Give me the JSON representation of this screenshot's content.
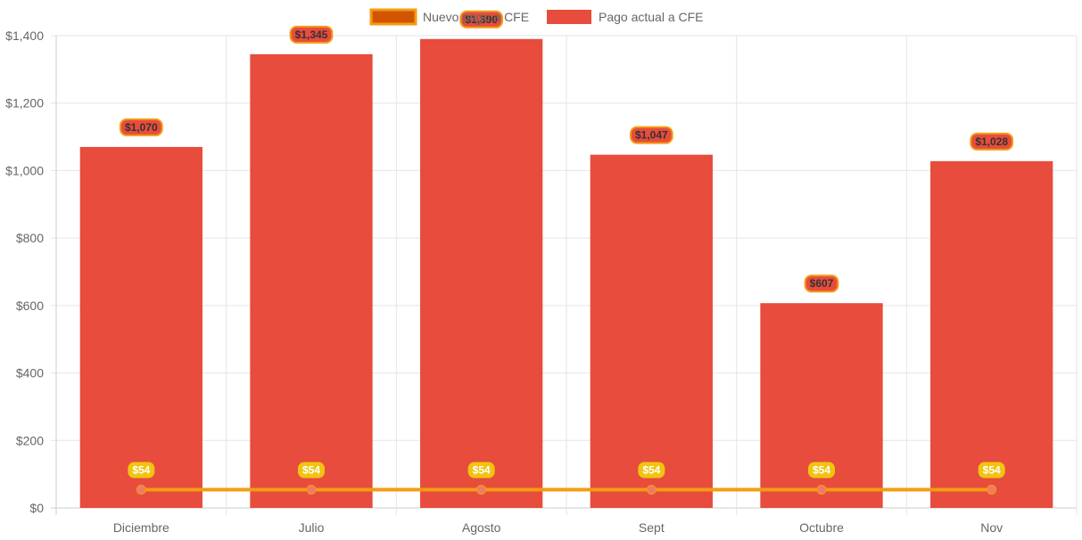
{
  "chart_data": {
    "type": "bar",
    "categories": [
      "Diciembre",
      "Julio",
      "Agosto",
      "Sept",
      "Octubre",
      "Nov"
    ],
    "series": [
      {
        "name": "Nuevo pago a CFE",
        "type": "line",
        "values": [
          54,
          54,
          54,
          54,
          54,
          54
        ],
        "labels": [
          "$54",
          "$54",
          "$54",
          "$54",
          "$54",
          "$54"
        ],
        "color": "#f39c12",
        "point_color": "#f07a6a",
        "label_bg": "#f1c40f",
        "legend_fill": "#d35400",
        "legend_border": "#f39c12"
      },
      {
        "name": "Pago actual a CFE",
        "type": "bar",
        "values": [
          1070,
          1345,
          1390,
          1047,
          607,
          1028
        ],
        "labels": [
          "$1,070",
          "$1,345",
          "$1,390",
          "$1,047",
          "$607",
          "$1,028"
        ],
        "color": "#e74c3c",
        "label_bg": "#e74c3c",
        "label_border": "#f39c12"
      }
    ],
    "ylim": [
      0,
      1400
    ],
    "yticks": [
      0,
      200,
      400,
      600,
      800,
      1000,
      1200,
      1400
    ],
    "ytick_labels": [
      "$0",
      "$200",
      "$400",
      "$600",
      "$800",
      "$1,000",
      "$1,200",
      "$1,400"
    ],
    "legend_position": "top-center",
    "grid": true,
    "title": "",
    "xlabel": "",
    "ylabel": ""
  }
}
